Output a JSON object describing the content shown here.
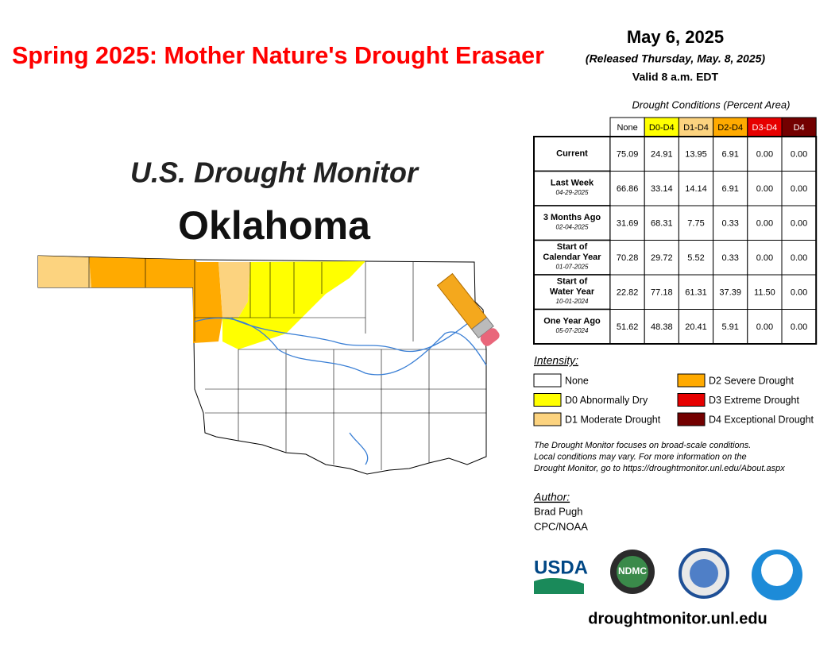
{
  "header": {
    "title": "Spring 2025: Mother Nature's Drought Erasaer",
    "date": "May 6, 2025",
    "released": "(Released Thursday, May. 8, 2025)",
    "valid": "Valid 8 a.m. EDT"
  },
  "map": {
    "heading": "U.S. Drought Monitor",
    "state": "Oklahoma"
  },
  "table": {
    "caption": "Drought Conditions (Percent Area)",
    "columns": [
      {
        "label": "None",
        "color": "#ffffff",
        "text": "#000000"
      },
      {
        "label": "D0-D4",
        "color": "#ffff00",
        "text": "#000000"
      },
      {
        "label": "D1-D4",
        "color": "#fcd37f",
        "text": "#000000"
      },
      {
        "label": "D2-D4",
        "color": "#ffaa00",
        "text": "#000000"
      },
      {
        "label": "D3-D4",
        "color": "#e60000",
        "text": "#ffffff"
      },
      {
        "label": "D4",
        "color": "#730000",
        "text": "#ffffff"
      }
    ],
    "rows": [
      {
        "label": [
          "Current"
        ],
        "values": [
          "75.09",
          "24.91",
          "13.95",
          "6.91",
          "0.00",
          "0.00"
        ]
      },
      {
        "label": [
          "Last Week"
        ],
        "date": "04-29-2025",
        "values": [
          "66.86",
          "33.14",
          "14.14",
          "6.91",
          "0.00",
          "0.00"
        ]
      },
      {
        "label": [
          "3 Months Ago"
        ],
        "date": "02-04-2025",
        "values": [
          "31.69",
          "68.31",
          "7.75",
          "0.33",
          "0.00",
          "0.00"
        ]
      },
      {
        "label": [
          "Start of",
          "Calendar Year"
        ],
        "date": "01-07-2025",
        "values": [
          "70.28",
          "29.72",
          "5.52",
          "0.33",
          "0.00",
          "0.00"
        ]
      },
      {
        "label": [
          "Start of",
          "Water Year"
        ],
        "date": "10-01-2024",
        "values": [
          "22.82",
          "77.18",
          "61.31",
          "37.39",
          "11.50",
          "0.00"
        ]
      },
      {
        "label": [
          "One Year Ago"
        ],
        "date": "05-07-2024",
        "values": [
          "51.62",
          "48.38",
          "20.41",
          "5.91",
          "0.00",
          "0.00"
        ]
      }
    ]
  },
  "legend": {
    "title": "Intensity:",
    "items": [
      {
        "label": "None",
        "color": "#ffffff"
      },
      {
        "label": "D0 Abnormally Dry",
        "color": "#ffff00"
      },
      {
        "label": "D1 Moderate Drought",
        "color": "#fcd37f"
      },
      {
        "label": "D2 Severe Drought",
        "color": "#ffaa00"
      },
      {
        "label": "D3 Extreme Drought",
        "color": "#e60000"
      },
      {
        "label": "D4 Exceptional Drought",
        "color": "#730000"
      }
    ]
  },
  "note": [
    "The Drought Monitor focuses on broad-scale conditions.",
    "Local conditions may vary. For more information on the",
    "Drought Monitor, go to https://droughtmonitor.unl.edu/About.aspx"
  ],
  "author": {
    "title": "Author:",
    "lines": [
      "Brad Pugh",
      "CPC/NOAA"
    ]
  },
  "logos": [
    "USDA",
    "NDMC"
  ],
  "url": "droughtmonitor.unl.edu"
}
